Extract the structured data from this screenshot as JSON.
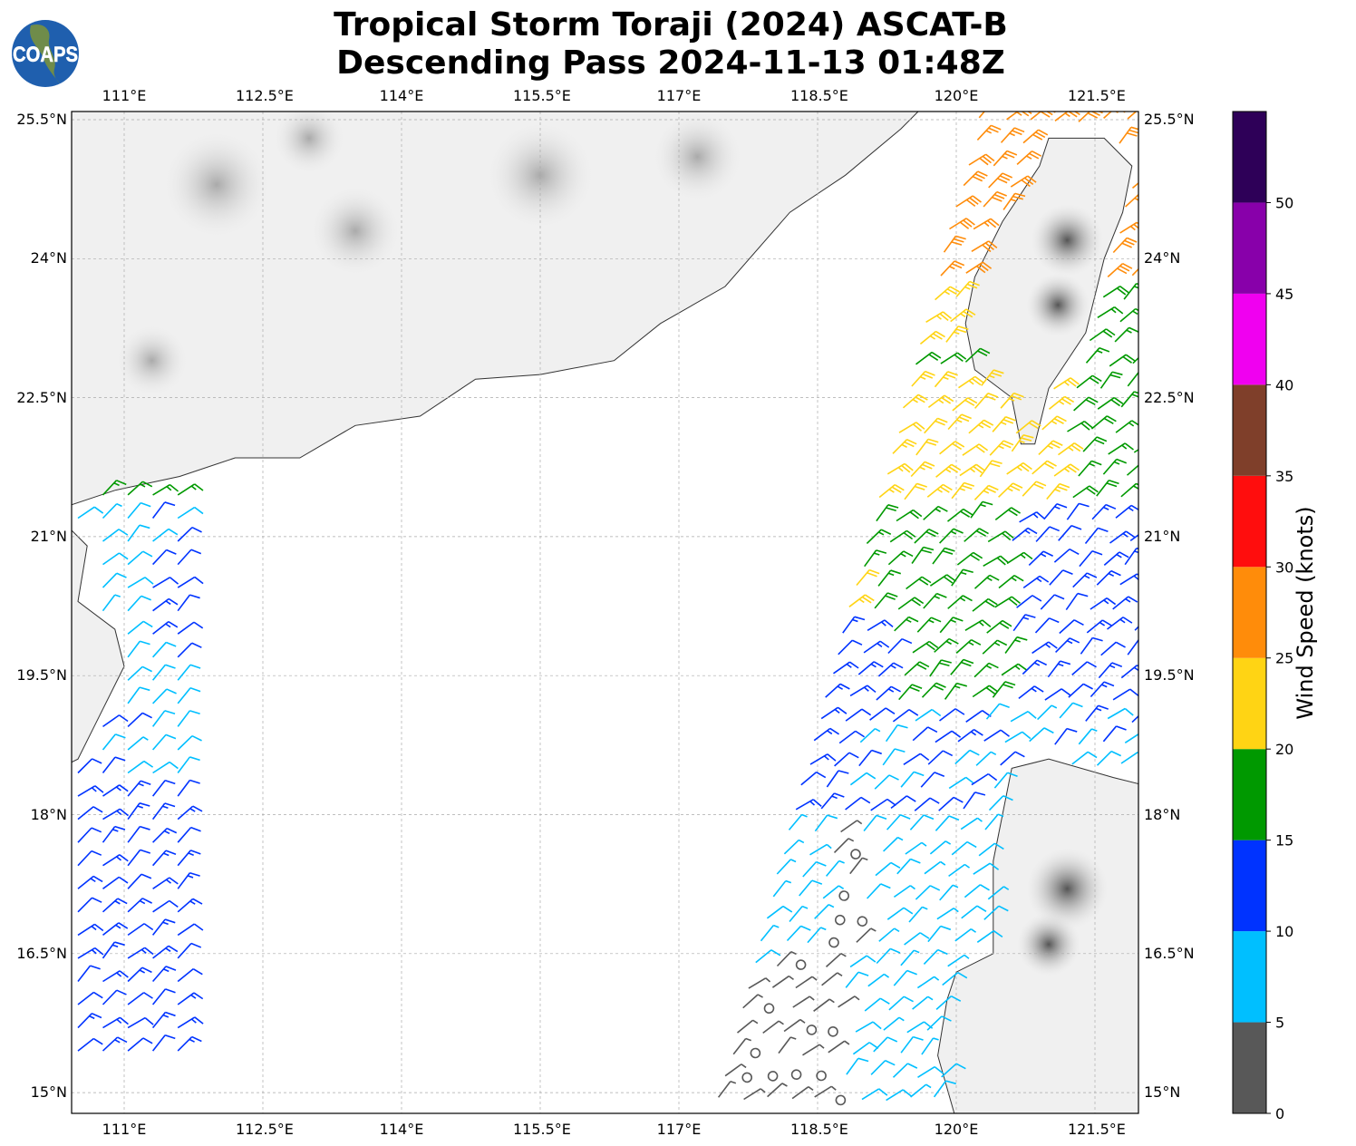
{
  "title": {
    "line1": "Tropical Storm Toraji (2024) ASCAT-B",
    "line2": "Descending Pass 2024-11-13 01:48Z"
  },
  "logo": {
    "text": "COAPS"
  },
  "map": {
    "lon_ticks": [
      "111°E",
      "112.5°E",
      "114°E",
      "115.5°E",
      "117°E",
      "118.5°E",
      "120°E",
      "121.5°E"
    ],
    "lon_values": [
      111,
      112.5,
      114,
      115.5,
      117,
      118.5,
      120,
      121.5
    ],
    "lat_ticks": [
      "25.5°N",
      "24°N",
      "22.5°N",
      "21°N",
      "19.5°N",
      "18°N",
      "16.5°N",
      "15°N"
    ],
    "lat_values": [
      25.5,
      24,
      22.5,
      21,
      19.5,
      18,
      16.5,
      15
    ],
    "extent": {
      "lon_min": 110.43,
      "lon_max": 121.97,
      "lat_min": 14.78,
      "lat_max": 25.59
    }
  },
  "colorbar": {
    "label": "Wind Speed (knots)",
    "ticks": [
      "0",
      "5",
      "10",
      "15",
      "20",
      "25",
      "30",
      "35",
      "40",
      "45",
      "50"
    ],
    "max": 55,
    "colors": [
      "#585858",
      "#00bfff",
      "#0033ff",
      "#009900",
      "#ffd414",
      "#ff8c0a",
      "#ff0d0d",
      "#7f3f2a",
      "#f000f0",
      "#8800aa",
      "#2e0058"
    ]
  },
  "wind_swaths": [
    {
      "name": "east",
      "lat_range": [
        14.8,
        25.6
      ],
      "west_edge": [
        [
          120.2,
          25.6
        ],
        [
          117.3,
          14.8
        ]
      ],
      "east_lon": 121.95
    },
    {
      "name": "west",
      "lat_range": [
        15.2,
        21.5
      ],
      "lon_range": [
        110.45,
        111.75
      ]
    }
  ]
}
